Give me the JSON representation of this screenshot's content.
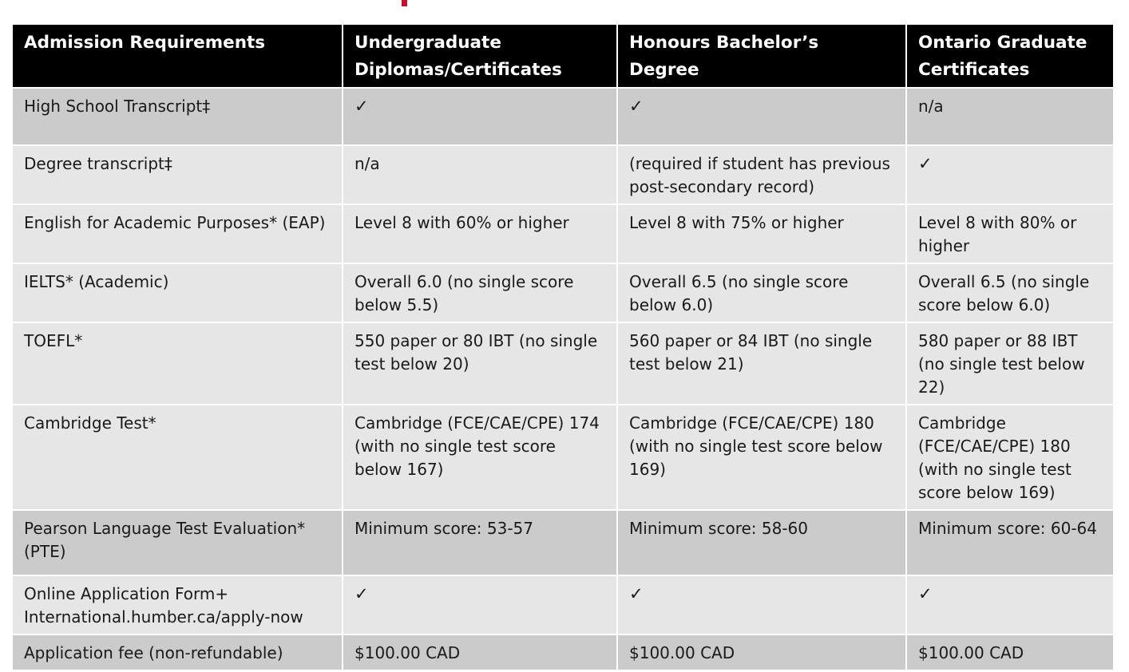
{
  "table": {
    "headers": [
      "Admission Requirements",
      "Undergraduate Diplomas/Certificates",
      "Honours Bachelor’s Degree",
      "Ontario Graduate Certificates"
    ],
    "rows": [
      [
        "High School Transcript‡",
        "✓",
        "✓",
        "n/a"
      ],
      [
        "Degree transcript‡",
        "n/a",
        "(required if student has previous post-secondary record)",
        "✓"
      ],
      [
        "English for Academic Purposes* (EAP)",
        "Level 8 with 60% or higher",
        "Level 8 with 75% or higher",
        "Level 8 with 80% or higher"
      ],
      [
        "IELTS* (Academic)",
        "Overall 6.0 (no single score below 5.5)",
        "Overall 6.5 (no single score below 6.0)",
        "Overall 6.5 (no single score below 6.0)"
      ],
      [
        "TOEFL*",
        "550 paper or 80 IBT (no single test below 20)",
        "560 paper or 84 IBT (no single test below 21)",
        "580 paper or 88 IBT (no single test below 22)"
      ],
      [
        "Cambridge Test*",
        "Cambridge (FCE/CAE/CPE) 174 (with no single test score below 167)",
        "Cambridge (FCE/CAE/CPE) 180 (with no single test score below 169)",
        "Cambridge (FCE/CAE/CPE) 180 (with no single test score below 169)"
      ],
      [
        "Pearson Language Test Evaluation* (PTE)",
        "Minimum score: 53-57",
        "Minimum score: 58-60",
        "Minimum score: 60-64"
      ],
      [
        "Online Application Form+ International.humber.ca/apply-now",
        "✓",
        "✓",
        "✓"
      ],
      [
        "Application fee (non-refundable)",
        "$100.00 CAD",
        "$100.00 CAD",
        "$100.00 CAD"
      ]
    ]
  },
  "colors": {
    "header_bg": "#000000",
    "row_dark": "#cbcbcb",
    "row_light": "#e6e6e6",
    "accent": "#c8102e"
  }
}
